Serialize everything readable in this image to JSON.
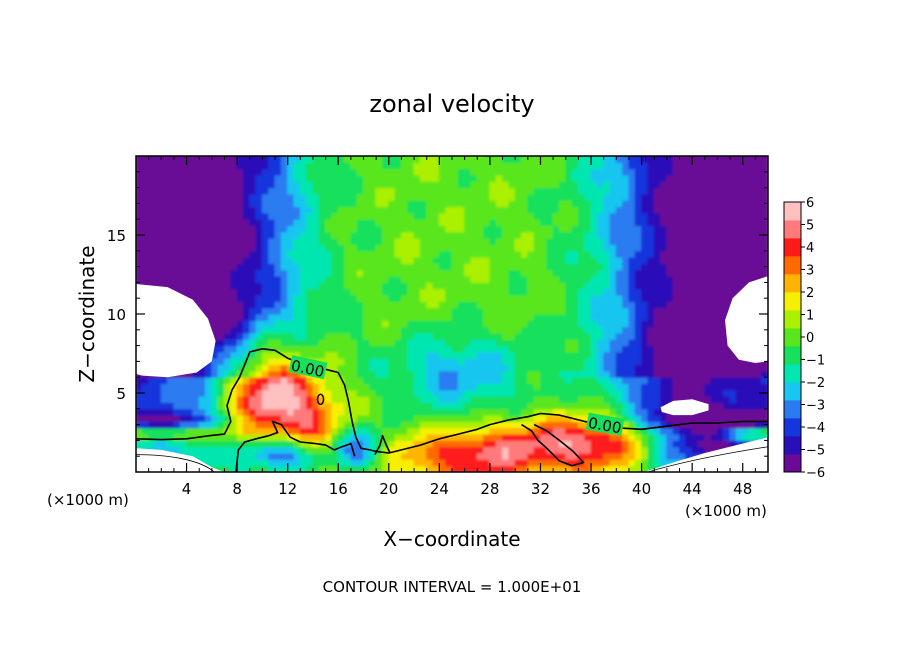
{
  "chart_data": {
    "type": "heatmap",
    "title": "zonal velocity",
    "xlabel": "X−coordinate",
    "ylabel": "Z−coordinate",
    "x_unit_label": "(×1000 m)",
    "y_unit_label": "(×1000 m)",
    "footer": "CONTOUR INTERVAL = 1.000E+01",
    "contour_label": "0.00",
    "xlim": [
      0,
      50
    ],
    "ylim": [
      0,
      20
    ],
    "x_ticks": [
      4,
      8,
      12,
      16,
      20,
      24,
      28,
      32,
      36,
      40,
      44,
      48
    ],
    "y_ticks": [
      5,
      10,
      15
    ],
    "colorbar": {
      "min": -6,
      "max": 6,
      "tick_labels": [
        "6",
        "5",
        "4",
        "3",
        "2",
        "1",
        "0",
        "−1",
        "−2",
        "−3",
        "−4",
        "−5",
        "−6"
      ],
      "colors": [
        "#6a0a96",
        "#2a0fb8",
        "#1536dc",
        "#2b7bf0",
        "#19c6ef",
        "#00e6b0",
        "#17e05c",
        "#5ae61e",
        "#aaf000",
        "#f6f000",
        "#ffb400",
        "#ff6a00",
        "#ff1a1a",
        "#ff7a7a",
        "#ffc0c0"
      ]
    }
  }
}
